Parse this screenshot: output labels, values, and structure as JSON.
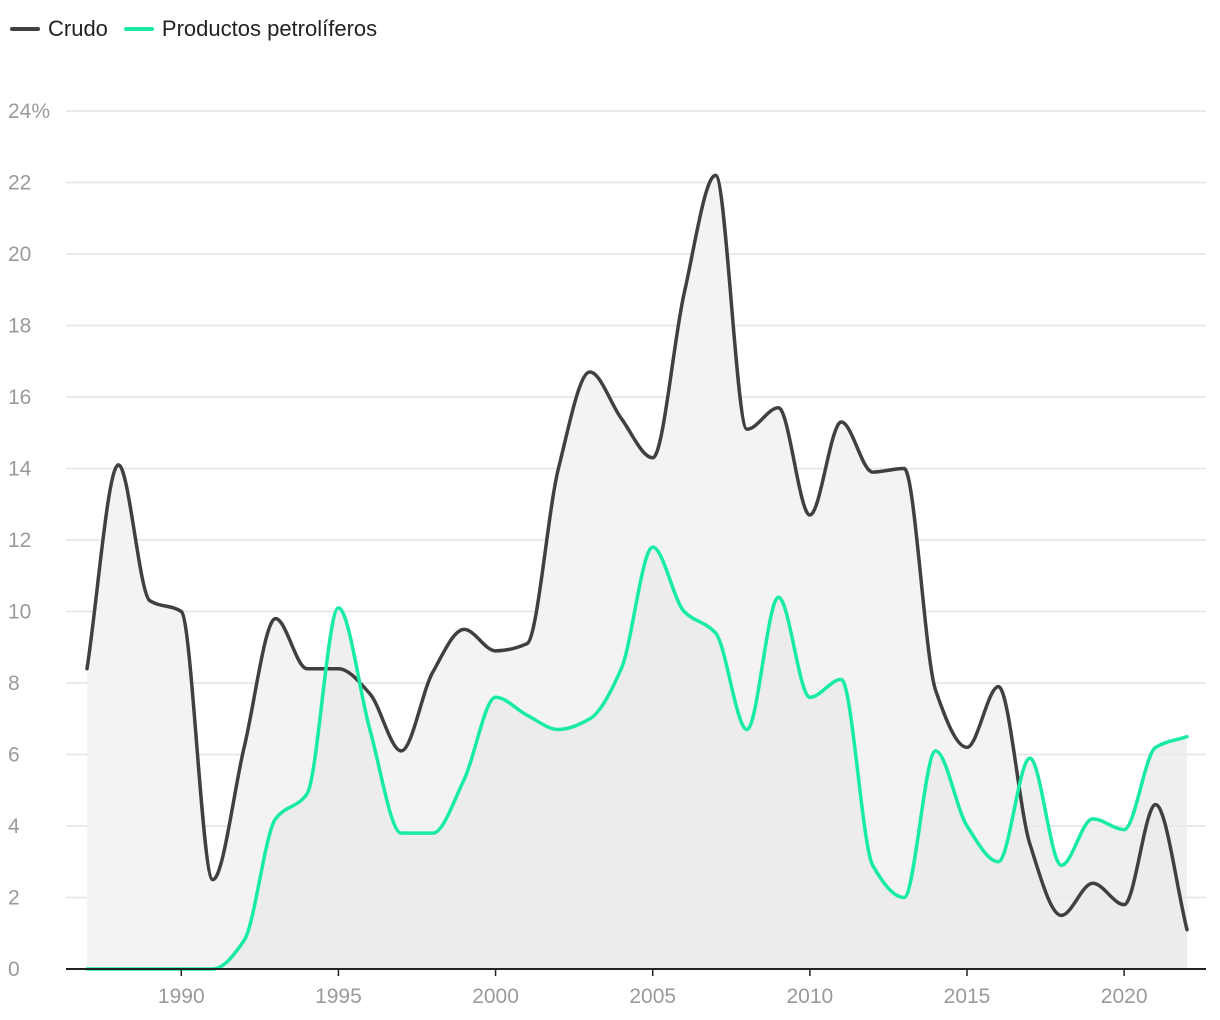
{
  "chart_data": {
    "type": "area",
    "title": "",
    "xlabel": "",
    "ylabel": "",
    "ylim": [
      0,
      24
    ],
    "xlim": [
      1987,
      2022
    ],
    "y_ticks": [
      0,
      2,
      4,
      6,
      8,
      10,
      12,
      14,
      16,
      18,
      20,
      22,
      24
    ],
    "y_tick_labels": [
      "0",
      "2",
      "4",
      "6",
      "8",
      "10",
      "12",
      "14",
      "16",
      "18",
      "20",
      "22",
      "24%"
    ],
    "x_ticks": [
      1990,
      1995,
      2000,
      2005,
      2010,
      2015,
      2020
    ],
    "x_tick_labels": [
      "1990",
      "1995",
      "2000",
      "2005",
      "2010",
      "2015",
      "2020"
    ],
    "grid": true,
    "legend_position": "top-left",
    "x": [
      1987,
      1988,
      1989,
      1990,
      1991,
      1992,
      1993,
      1994,
      1995,
      1996,
      1997,
      1998,
      1999,
      2000,
      2001,
      2002,
      2003,
      2004,
      2005,
      2006,
      2007,
      2008,
      2009,
      2010,
      2011,
      2012,
      2013,
      2014,
      2015,
      2016,
      2017,
      2018,
      2019,
      2020,
      2021,
      2022
    ],
    "series": [
      {
        "name": "Crudo",
        "color": "#404040",
        "fill": "#f3f3f3",
        "values": [
          8.4,
          14.1,
          10.3,
          10.0,
          2.5,
          6.2,
          9.8,
          8.4,
          8.4,
          7.7,
          6.1,
          8.3,
          9.5,
          8.9,
          9.1,
          14.0,
          16.7,
          15.4,
          14.3,
          18.9,
          22.2,
          15.1,
          15.7,
          12.7,
          15.3,
          13.9,
          14.0,
          7.8,
          6.2,
          7.9,
          3.5,
          1.5,
          2.4,
          1.8,
          4.6,
          1.1
        ]
      },
      {
        "name": "Productos petrolíferos",
        "color": "#18eaa8",
        "fill": "#e9e9e9",
        "values": [
          0,
          0,
          0,
          0,
          0,
          0.8,
          4.2,
          4.9,
          10.1,
          6.7,
          3.8,
          3.8,
          5.3,
          7.6,
          7.1,
          6.7,
          7.0,
          8.4,
          11.8,
          10.0,
          9.4,
          6.7,
          10.4,
          7.6,
          8.1,
          2.9,
          2.0,
          6.1,
          4.0,
          3.0,
          5.9,
          2.9,
          4.2,
          3.9,
          6.2,
          6.5
        ]
      }
    ]
  },
  "legend": {
    "items": [
      {
        "label": "Crudo",
        "color": "#404040"
      },
      {
        "label": "Productos petrolíferos",
        "color": "#18eaa8"
      }
    ]
  }
}
